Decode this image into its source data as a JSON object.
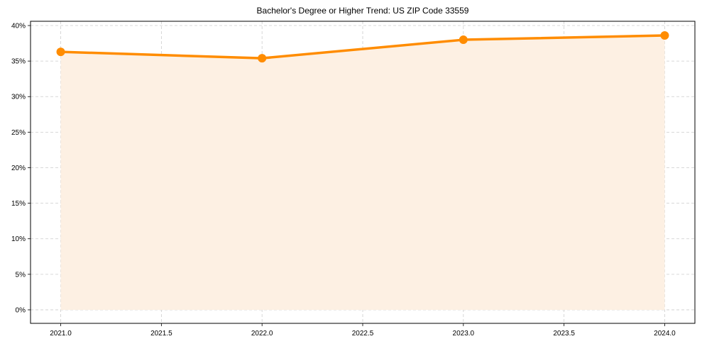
{
  "chart_data": {
    "type": "line",
    "title": "Bachelor's Degree or Higher Trend: US ZIP Code 33559",
    "xlabel": "",
    "ylabel": "",
    "x": [
      2021.0,
      2022.0,
      2023.0,
      2024.0
    ],
    "series": [
      {
        "name": "Bachelor's Degree or Higher",
        "values": [
          36.3,
          35.4,
          38.0,
          38.6
        ],
        "color": "#ff8c00",
        "fill_color": "#fdf0e3",
        "marker": "circle",
        "area_fill": true
      }
    ],
    "xticks": [
      2021.0,
      2021.5,
      2022.0,
      2022.5,
      2023.0,
      2023.5,
      2024.0
    ],
    "xtick_labels": [
      "2021.0",
      "2021.5",
      "2022.0",
      "2022.5",
      "2023.0",
      "2023.5",
      "2024.0"
    ],
    "yticks": [
      0,
      5,
      10,
      15,
      20,
      25,
      30,
      35,
      40
    ],
    "ytick_labels": [
      "0%",
      "5%",
      "10%",
      "15%",
      "20%",
      "25%",
      "30%",
      "35%",
      "40%"
    ],
    "xlim": [
      2020.85,
      2024.15
    ],
    "ylim": [
      -1.9,
      40.6
    ],
    "grid": true,
    "grid_style": "dashed",
    "legend": null
  }
}
